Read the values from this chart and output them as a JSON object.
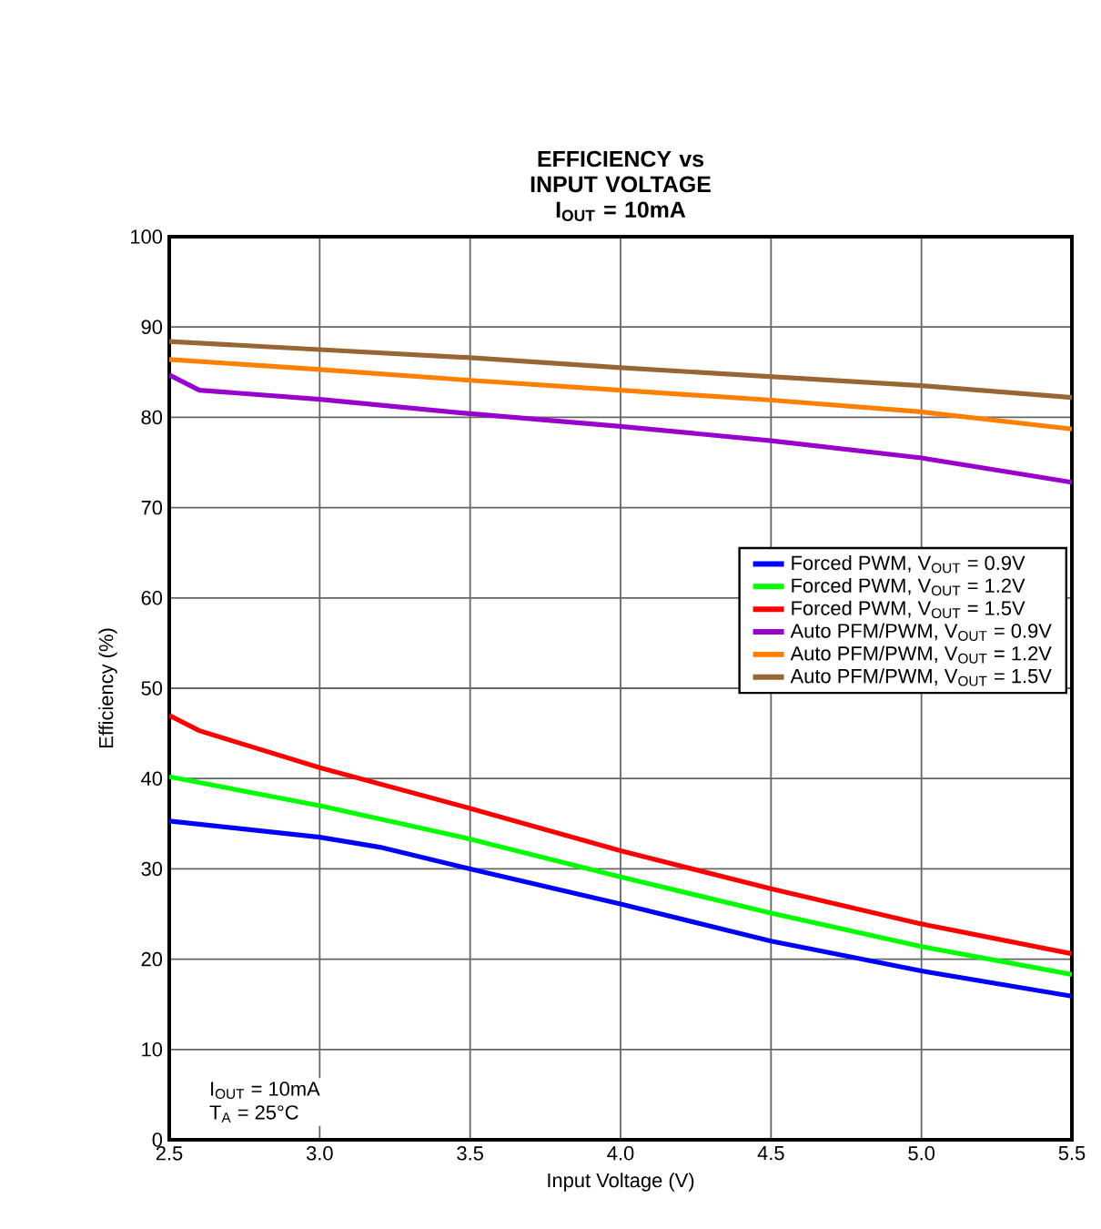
{
  "chart_data": {
    "type": "line",
    "title": "EFFICIENCY vs INPUT VOLTAGE",
    "subtitle": "I$_{OUT}$ = 10mA",
    "xlabel": "Input Voltage (V)",
    "ylabel": "Efficiency (%)",
    "xlim": [
      2.5,
      5.5
    ],
    "xticks": [
      {
        "value": 2.5,
        "label": "2.5"
      },
      {
        "value": 3,
        "label": "3.0"
      },
      {
        "value": 3.5,
        "label": "3.5"
      },
      {
        "value": 4,
        "label": "4.0"
      },
      {
        "value": 4.5,
        "label": "4.5"
      },
      {
        "value": 5,
        "label": "5.0"
      },
      {
        "value": 5.5,
        "label": "5.5"
      }
    ],
    "ylim": [
      0,
      100
    ],
    "yticks": [
      0,
      10,
      20,
      30,
      40,
      50,
      60,
      70,
      80,
      90,
      100
    ],
    "grid": true,
    "legend": "right",
    "marker": "none",
    "line_style": "solid",
    "annotations": [
      "I$_{OUT}$ = 10mA",
      "T$_{A}$ = 25°C"
    ],
    "series": [
      {
        "name": "Forced PWM, V$_{OUT}$ = 0.9V",
        "color": "#0000ff",
        "x": [
          2.5,
          3.0,
          3.2,
          3.5,
          4.0,
          4.5,
          5.0,
          5.5
        ],
        "values": [
          35.3,
          33.5,
          32.4,
          30.0,
          26.1,
          22.0,
          18.7,
          15.9
        ]
      },
      {
        "name": "Forced PWM, V$_{OUT}$ = 1.2V",
        "color": "#00ff00",
        "x": [
          2.5,
          3.0,
          3.5,
          4.0,
          4.5,
          5.0,
          5.5
        ],
        "values": [
          40.2,
          37.0,
          33.3,
          29.1,
          25.1,
          21.4,
          18.3
        ]
      },
      {
        "name": "Forced PWM, V$_{OUT}$ = 1.5V",
        "color": "#ff0000",
        "x": [
          2.5,
          2.6,
          3.0,
          3.5,
          4.0,
          4.5,
          5.0,
          5.5
        ],
        "values": [
          47.0,
          45.3,
          41.2,
          36.7,
          32.0,
          27.8,
          23.9,
          20.6
        ]
      },
      {
        "name": "Auto PFM/PWM, V$_{OUT}$ = 0.9V",
        "color": "#9900cc",
        "x": [
          2.5,
          2.6,
          3.0,
          3.5,
          4.0,
          4.5,
          5.0,
          5.5
        ],
        "values": [
          84.7,
          83.0,
          82.0,
          80.4,
          79.0,
          77.4,
          75.5,
          72.8
        ]
      },
      {
        "name": "Auto PFM/PWM, V$_{OUT}$ = 1.2V",
        "color": "#ff7f00",
        "x": [
          2.5,
          3.0,
          3.5,
          4.0,
          4.5,
          5.0,
          5.5
        ],
        "values": [
          86.4,
          85.3,
          84.1,
          83.0,
          81.9,
          80.6,
          78.7
        ]
      },
      {
        "name": "Auto PFM/PWM, V$_{OUT}$ = 1.5V",
        "color": "#996633",
        "x": [
          2.5,
          3.0,
          3.5,
          4.0,
          4.5,
          5.0,
          5.5
        ],
        "values": [
          88.4,
          87.5,
          86.6,
          85.5,
          84.5,
          83.5,
          82.2
        ]
      }
    ]
  }
}
